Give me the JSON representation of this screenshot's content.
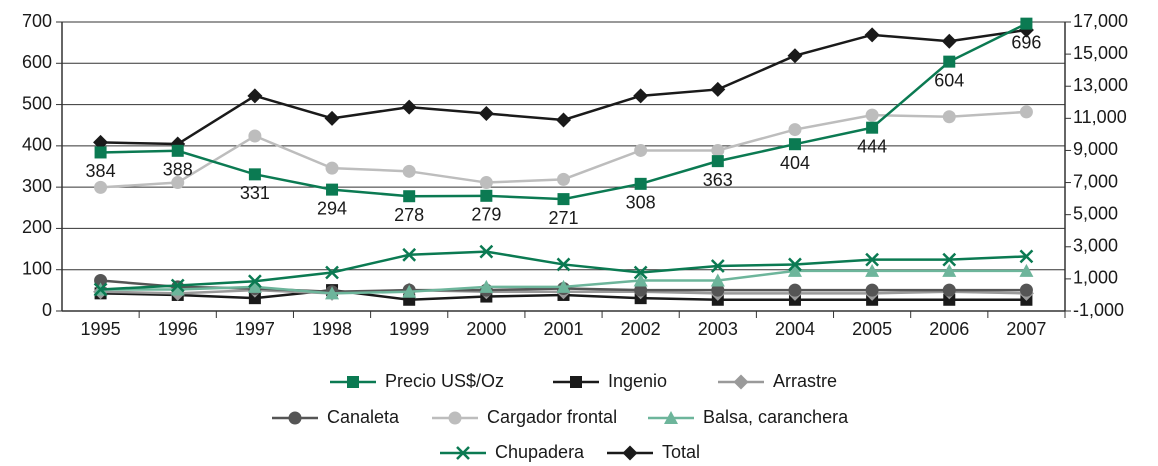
{
  "chart_data": {
    "type": "line",
    "categories": [
      "1995",
      "1996",
      "1997",
      "1998",
      "1999",
      "2000",
      "2001",
      "2002",
      "2003",
      "2004",
      "2005",
      "2006",
      "2007"
    ],
    "ylim": [
      0,
      700
    ],
    "yticks": [
      0,
      100,
      200,
      300,
      400,
      500,
      600,
      700
    ],
    "y2lim": [
      -1000,
      17000
    ],
    "y2ticks": [
      {
        "value": -1000,
        "label": "-1,000"
      },
      {
        "value": 1000,
        "label": "1,000"
      },
      {
        "value": 3000,
        "label": "3,000"
      },
      {
        "value": 5000,
        "label": "5,000"
      },
      {
        "value": 7000,
        "label": "7,000"
      },
      {
        "value": 9000,
        "label": "9,000"
      },
      {
        "value": 11000,
        "label": "11,000"
      },
      {
        "value": 13000,
        "label": "13,000"
      },
      {
        "value": 15000,
        "label": "15,000"
      },
      {
        "value": 17000,
        "label": "17,000"
      }
    ],
    "grid": true,
    "legend": "bottom",
    "series": [
      {
        "name": "Precio US$/Oz",
        "color": "#0b7a52",
        "marker": "square",
        "axis": "y",
        "values": [
          384,
          388,
          331,
          294,
          278,
          279,
          271,
          308,
          363,
          404,
          444,
          604,
          696
        ]
      },
      {
        "name": "Ingenio",
        "color": "#1a1a1a",
        "marker": "square",
        "axis": "y2",
        "values": [
          100,
          0,
          -200,
          300,
          -300,
          -100,
          0,
          -200,
          -300,
          -300,
          -300,
          -300,
          -300
        ]
      },
      {
        "name": "Arrastre",
        "color": "#9a9a9a",
        "marker": "diamond",
        "axis": "y2",
        "values": [
          200,
          100,
          300,
          100,
          300,
          200,
          200,
          200,
          100,
          100,
          100,
          200,
          100
        ]
      },
      {
        "name": "Canaleta",
        "color": "#555555",
        "marker": "circle",
        "axis": "y2",
        "values": [
          900,
          500,
          400,
          200,
          300,
          300,
          400,
          300,
          300,
          300,
          300,
          300,
          300
        ]
      },
      {
        "name": "Cargador frontal",
        "color": "#bdbdbd",
        "marker": "circle",
        "axis": "y2",
        "values": [
          6700,
          7000,
          9900,
          7900,
          7700,
          7000,
          7200,
          9000,
          9000,
          10300,
          11200,
          11100,
          11400
        ]
      },
      {
        "name": "Balsa, caranchera",
        "color": "#6db59b",
        "marker": "triangle",
        "axis": "y2",
        "values": [
          340,
          340,
          500,
          100,
          200,
          500,
          500,
          900,
          900,
          1500,
          1500,
          1500,
          1500
        ]
      },
      {
        "name": "Chupadera",
        "color": "#0b7a52",
        "marker": "x",
        "axis": "y2",
        "values": [
          340,
          590,
          850,
          1400,
          2500,
          2700,
          1900,
          1400,
          1800,
          1900,
          2200,
          2200,
          2400
        ]
      },
      {
        "name": "Total",
        "color": "#1a1a1a",
        "marker": "diamond",
        "axis": "y2",
        "values": [
          9500,
          9400,
          12400,
          11000,
          11700,
          11300,
          10900,
          12400,
          12800,
          14900,
          16200,
          15800,
          16500
        ]
      }
    ]
  }
}
